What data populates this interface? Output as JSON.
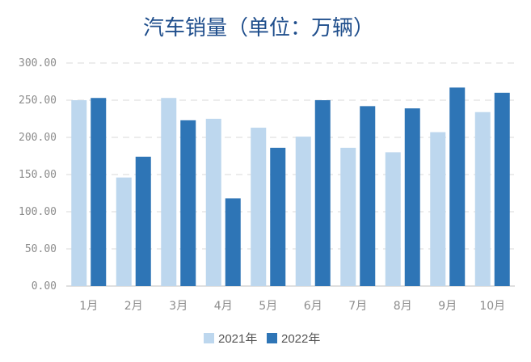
{
  "colors": {
    "title": "#1f4e8c",
    "series_2021": "#bdd7ee",
    "series_2022": "#2e75b6",
    "grid": "#d9d9d9",
    "axis": "#bfbfbf"
  },
  "chart_data": {
    "type": "bar",
    "title": "汽车销量（单位：万辆）",
    "xlabel": "",
    "ylabel": "",
    "ylim": [
      0,
      300
    ],
    "grid": true,
    "legend_position": "bottom",
    "y_ticks": [
      "0.00",
      "50.00",
      "100.00",
      "150.00",
      "200.00",
      "250.00",
      "300.00"
    ],
    "categories": [
      "1月",
      "2月",
      "3月",
      "4月",
      "5月",
      "6月",
      "7月",
      "8月",
      "9月",
      "10月"
    ],
    "series": [
      {
        "name": "2021年",
        "values": [
          250,
          146,
          253,
          225,
          213,
          201,
          186,
          180,
          207,
          234
        ]
      },
      {
        "name": "2022年",
        "values": [
          253,
          174,
          223,
          118,
          186,
          250,
          242,
          239,
          267,
          260
        ]
      }
    ]
  }
}
